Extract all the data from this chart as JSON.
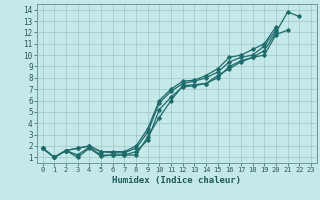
{
  "xlabel": "Humidex (Indice chaleur)",
  "x_ticks": [
    0,
    1,
    2,
    3,
    4,
    5,
    6,
    7,
    8,
    9,
    10,
    11,
    12,
    13,
    14,
    15,
    16,
    17,
    18,
    19,
    20,
    21,
    22,
    23
  ],
  "y_ticks": [
    1,
    2,
    3,
    4,
    5,
    6,
    7,
    8,
    9,
    10,
    11,
    12,
    13,
    14
  ],
  "xlim": [
    -0.5,
    23.5
  ],
  "ylim": [
    0.5,
    14.5
  ],
  "bg_color": "#c5e8e8",
  "grid_color": "#a8cccc",
  "line_color": "#1e6b6b",
  "series": [
    [
      1.8,
      1.0,
      1.6,
      1.0,
      1.8,
      1.1,
      1.2,
      1.2,
      1.2,
      2.8,
      4.5,
      6.0,
      7.3,
      7.4,
      7.5,
      8.2,
      8.8,
      9.4,
      9.8,
      10.4,
      12.0,
      13.8,
      13.4,
      null
    ],
    [
      1.8,
      1.0,
      1.6,
      1.2,
      1.9,
      1.2,
      1.2,
      1.2,
      1.5,
      2.5,
      5.2,
      6.3,
      7.2,
      7.3,
      7.5,
      8.0,
      9.0,
      9.5,
      9.8,
      10.0,
      11.8,
      12.2,
      null,
      null
    ],
    [
      1.8,
      1.0,
      1.6,
      1.8,
      2.0,
      1.5,
      1.4,
      1.4,
      1.8,
      3.2,
      5.8,
      6.8,
      7.5,
      7.7,
      8.0,
      8.5,
      9.4,
      9.8,
      10.0,
      10.8,
      12.2,
      null,
      null,
      null
    ],
    [
      1.8,
      1.0,
      1.6,
      1.8,
      2.0,
      1.5,
      1.5,
      1.5,
      2.0,
      3.5,
      6.0,
      7.0,
      7.7,
      7.8,
      8.2,
      8.8,
      9.8,
      10.0,
      10.5,
      11.0,
      12.5,
      null,
      null,
      null
    ]
  ]
}
